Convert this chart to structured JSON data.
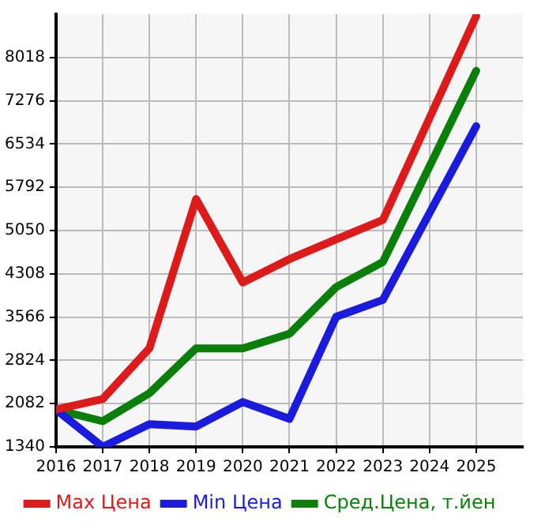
{
  "chart_data": {
    "type": "line",
    "x": [
      2016,
      2017,
      2018,
      2019,
      2020,
      2021,
      2022,
      2023,
      2024,
      2025
    ],
    "xlim": [
      2016,
      2026
    ],
    "xticks": [
      2016,
      2017,
      2018,
      2019,
      2020,
      2021,
      2022,
      2023,
      2024,
      2025
    ],
    "ylim": [
      1340,
      8760
    ],
    "yticks": [
      1340,
      2082,
      2824,
      3566,
      4308,
      5050,
      5792,
      6534,
      7276,
      8018
    ],
    "grid": true,
    "legend": "bottom",
    "marker": "none",
    "line_style": "solid",
    "series": [
      {
        "name": "Max Цена",
        "color": "#dd1b1b",
        "values": [
          1980,
          2160,
          3030,
          5590,
          4160,
          4560,
          4900,
          5230,
          6980,
          8730
        ]
      },
      {
        "name": "Min Цена",
        "color": "#1b1bdd",
        "values": [
          1980,
          1340,
          1730,
          1690,
          2110,
          1820,
          3570,
          3860,
          5350,
          6840
        ]
      },
      {
        "name": "Сред.Цена, т.йен",
        "color": "#0a800a",
        "values": [
          1980,
          1780,
          2260,
          3030,
          3030,
          3280,
          4080,
          4510,
          6150,
          7790
        ]
      }
    ]
  }
}
